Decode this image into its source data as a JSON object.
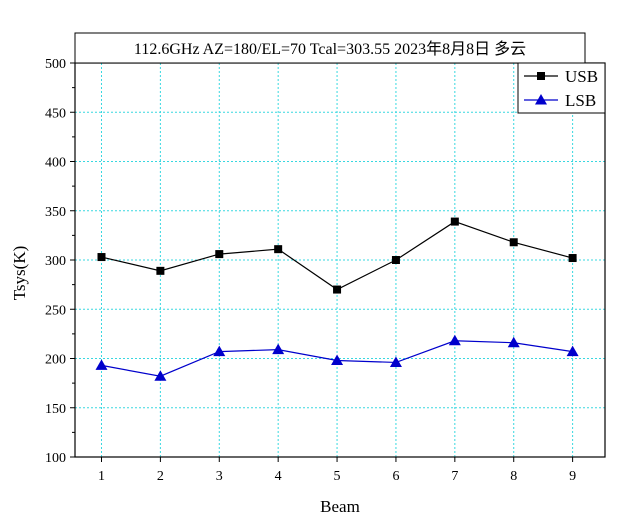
{
  "chart_data": {
    "type": "line",
    "title": "112.6GHz  AZ=180/EL=70  Tcal=303.55  2023年8月8日  多云",
    "xlabel": "Beam",
    "ylabel": "Tsys(K)",
    "x": [
      1,
      2,
      3,
      4,
      5,
      6,
      7,
      8,
      9
    ],
    "xlim": [
      0.55,
      9.55
    ],
    "ylim": [
      100,
      500
    ],
    "yticks": [
      100,
      150,
      200,
      250,
      300,
      350,
      400,
      450,
      500
    ],
    "grid": true,
    "legend_position": "top-right",
    "series": [
      {
        "name": "USB",
        "marker": "square",
        "color": "#000000",
        "values": [
          303,
          289,
          306,
          311,
          270,
          300,
          339,
          318,
          302
        ]
      },
      {
        "name": "LSB",
        "marker": "triangle",
        "color": "#0000cc",
        "values": [
          193,
          182,
          207,
          209,
          198,
          196,
          218,
          216,
          207
        ]
      }
    ]
  }
}
